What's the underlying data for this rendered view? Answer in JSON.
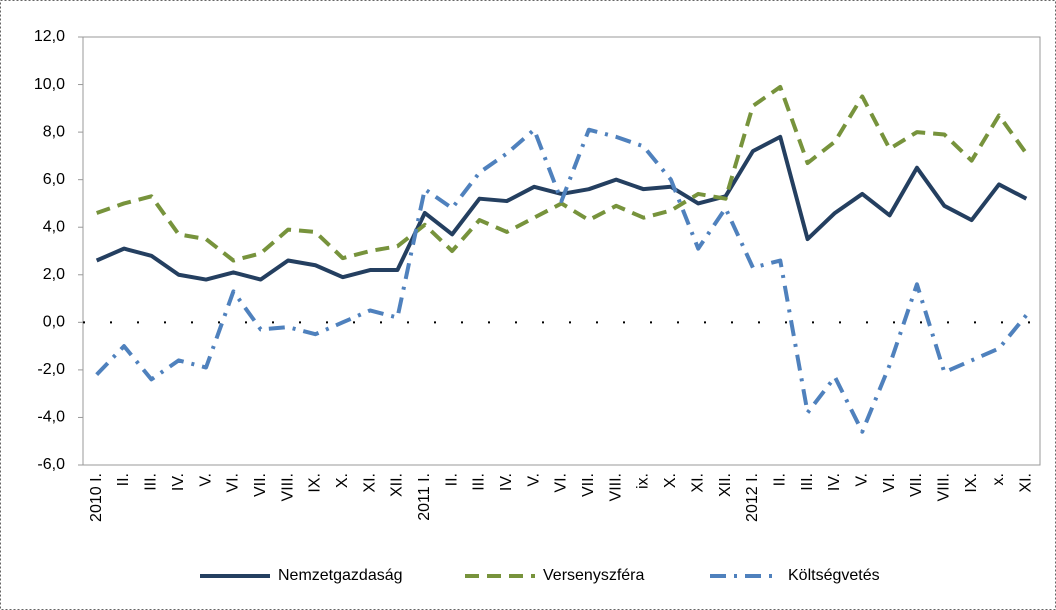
{
  "chart_data": {
    "type": "line",
    "categories": [
      "2010 I.",
      "II.",
      "III.",
      "IV.",
      "V.",
      "VI.",
      "VII.",
      "VIII.",
      "IX.",
      "X.",
      "XI.",
      "XII.",
      "2011 I.",
      "II.",
      "III.",
      "IV.",
      "V.",
      "VI.",
      "VII.",
      "VIII.",
      "ix.",
      "X.",
      "XI.",
      "XII.",
      "2012 I.",
      "II.",
      "III.",
      "IV.",
      "V.",
      "VI.",
      "VII.",
      "VIII.",
      "IX.",
      "x.",
      "XI."
    ],
    "series": [
      {
        "name": "Nemzetgazdaság",
        "color": "#243f60",
        "dash": "solid",
        "values": [
          2.6,
          3.1,
          2.8,
          2.0,
          1.8,
          2.1,
          1.8,
          2.6,
          2.4,
          1.9,
          2.2,
          2.2,
          4.6,
          3.7,
          5.2,
          5.1,
          5.7,
          5.4,
          5.6,
          6.0,
          5.6,
          5.7,
          5.0,
          5.3,
          7.2,
          7.8,
          3.5,
          4.6,
          5.4,
          4.5,
          6.5,
          4.9,
          4.3,
          5.8,
          5.2
        ]
      },
      {
        "name": "Versenyszféra",
        "color": "#77933c",
        "dash": "dashed",
        "values": [
          4.6,
          5.0,
          5.3,
          3.7,
          3.5,
          2.6,
          2.9,
          3.9,
          3.8,
          2.7,
          3.0,
          3.2,
          4.1,
          3.0,
          4.3,
          3.8,
          4.4,
          5.0,
          4.3,
          4.9,
          4.4,
          4.7,
          5.4,
          5.2,
          9.1,
          9.9,
          6.7,
          7.6,
          9.5,
          7.3,
          8.0,
          7.9,
          6.8,
          8.7,
          7.1
        ]
      },
      {
        "name": "Költségvetés",
        "color": "#4f81bd",
        "dash": "dashdot",
        "values": [
          -2.2,
          -1.0,
          -2.4,
          -1.6,
          -1.9,
          1.3,
          -0.3,
          -0.2,
          -0.5,
          0.0,
          0.5,
          0.2,
          5.6,
          4.8,
          6.3,
          7.1,
          8.1,
          5.1,
          8.1,
          7.8,
          7.4,
          6.0,
          3.1,
          4.8,
          2.3,
          2.6,
          -3.8,
          -2.3,
          -4.6,
          -1.8,
          1.6,
          -2.1,
          -1.6,
          -1.1,
          0.3
        ]
      }
    ],
    "ylim": [
      -6,
      12
    ],
    "yticks": [
      {
        "value": -6,
        "label": "-6,0"
      },
      {
        "value": -4,
        "label": "-4,0"
      },
      {
        "value": -2,
        "label": "-2,0"
      },
      {
        "value": 0,
        "label": "0,0"
      },
      {
        "value": 2,
        "label": "2,0"
      },
      {
        "value": 4,
        "label": "4,0"
      },
      {
        "value": 6,
        "label": "6,0"
      },
      {
        "value": 8,
        "label": "8,0"
      },
      {
        "value": 10,
        "label": "10,0"
      },
      {
        "value": 12,
        "label": "12,0"
      }
    ],
    "legend": "bottom"
  }
}
